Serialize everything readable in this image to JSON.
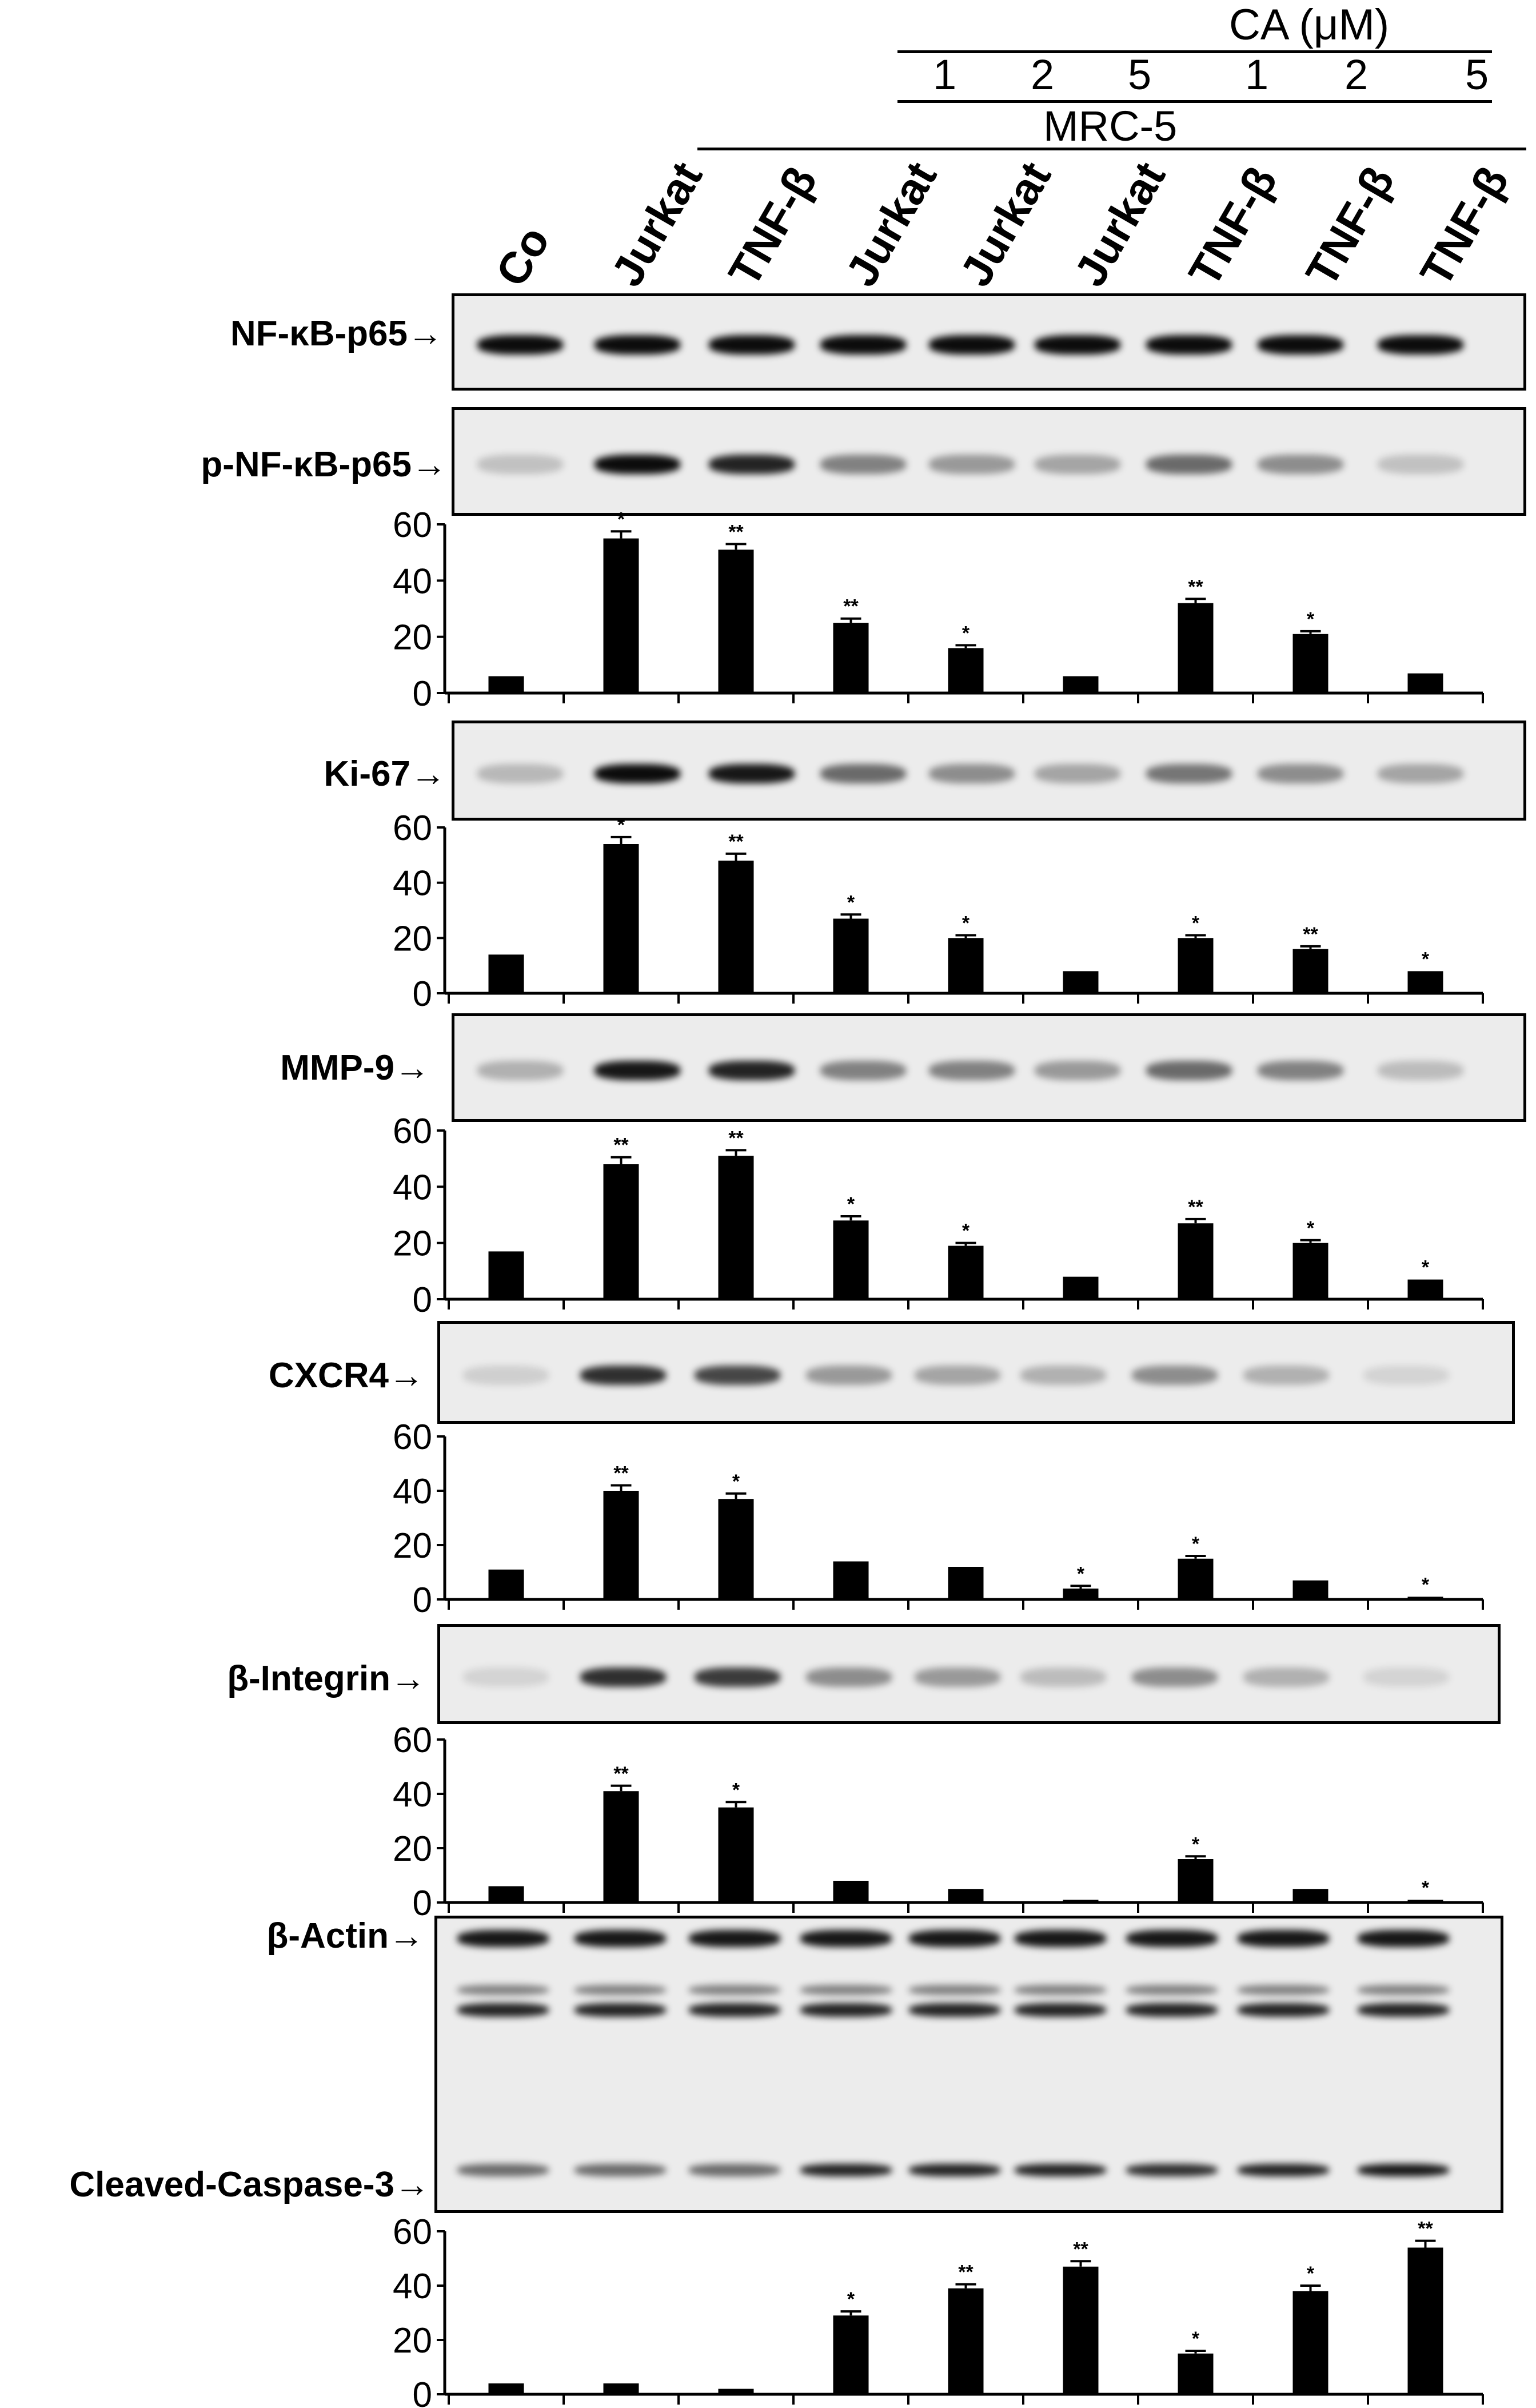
{
  "header": {
    "ca_label": "CA (μM)",
    "ca_doses": [
      "1",
      "2",
      "5",
      "1",
      "2",
      "5"
    ],
    "mrc_label": "MRC-5"
  },
  "lanes": [
    "Co",
    "Jurkat",
    "TNF-β",
    "Jurkat",
    "Jurkat",
    "Jurkat",
    "TNF-β",
    "TNF-β",
    "TNF-β"
  ],
  "blots": {
    "nfkb_label": "NF-κB-p65",
    "pnfkb_label": "p-NF-κB-p65",
    "ki67_label": "Ki-67",
    "mmp9_label": "MMP-9",
    "cxcr4_label": "CXCR4",
    "integrin_label": "β-Integrin",
    "actin_label": "β-Actin",
    "caspase_label": "Cleaved-Caspase-3"
  },
  "arrow": "→",
  "chart_data": [
    {
      "type": "bar",
      "name": "p-NF-κB-p65",
      "ylim": [
        0,
        60
      ],
      "yticks": [
        "60",
        "40",
        "20",
        "0"
      ],
      "values": [
        6,
        55,
        51,
        25,
        16,
        6,
        32,
        21,
        7
      ],
      "errors": [
        0,
        2.5,
        2,
        1.5,
        1,
        0,
        1.5,
        1,
        0
      ],
      "annotations": [
        "",
        "*",
        "**",
        "**",
        "*",
        "",
        "**",
        "*",
        ""
      ]
    },
    {
      "type": "bar",
      "name": "Ki-67",
      "ylim": [
        0,
        60
      ],
      "yticks": [
        "60",
        "40",
        "20",
        "0"
      ],
      "values": [
        14,
        54,
        48,
        27,
        20,
        8,
        20,
        16,
        8
      ],
      "errors": [
        0,
        2.5,
        2.5,
        1.5,
        1,
        0,
        1,
        1,
        0
      ],
      "annotations": [
        "",
        "*",
        "**",
        "*",
        "*",
        "",
        "*",
        "**",
        "*"
      ]
    },
    {
      "type": "bar",
      "name": "MMP-9",
      "ylim": [
        0,
        60
      ],
      "yticks": [
        "60",
        "40",
        "20",
        "0"
      ],
      "values": [
        17,
        48,
        51,
        28,
        19,
        8,
        27,
        20,
        7
      ],
      "errors": [
        0,
        2.5,
        2,
        1.5,
        1,
        0,
        1.5,
        1,
        0
      ],
      "annotations": [
        "",
        "**",
        "**",
        "*",
        "*",
        "",
        "**",
        "*",
        "*"
      ]
    },
    {
      "type": "bar",
      "name": "CXCR4",
      "ylim": [
        0,
        60
      ],
      "yticks": [
        "60",
        "40",
        "20",
        "0"
      ],
      "values": [
        11,
        40,
        37,
        14,
        12,
        4,
        15,
        7,
        1
      ],
      "errors": [
        0,
        2,
        2,
        0,
        0,
        1,
        1,
        0,
        0
      ],
      "annotations": [
        "",
        "**",
        "*",
        "",
        "",
        "*",
        "*",
        "",
        "*"
      ]
    },
    {
      "type": "bar",
      "name": "β-Integrin",
      "ylim": [
        0,
        60
      ],
      "yticks": [
        "60",
        "40",
        "20",
        "0"
      ],
      "values": [
        6,
        41,
        35,
        8,
        5,
        1,
        16,
        5,
        1
      ],
      "errors": [
        0,
        2,
        2,
        0,
        0,
        0,
        1,
        0,
        0
      ],
      "annotations": [
        "",
        "**",
        "*",
        "",
        "",
        "",
        "*",
        "",
        "*"
      ]
    },
    {
      "type": "bar",
      "name": "Cleaved-Caspase-3",
      "ylim": [
        0,
        60
      ],
      "yticks": [
        "60",
        "40",
        "20",
        "0"
      ],
      "values": [
        4,
        4,
        2,
        29,
        39,
        47,
        15,
        38,
        54
      ],
      "errors": [
        0,
        0,
        0,
        1.5,
        1.5,
        2,
        1,
        2,
        2.5
      ],
      "annotations": [
        "",
        "",
        "",
        "*",
        "**",
        "**",
        "*",
        "*",
        "**"
      ]
    }
  ]
}
